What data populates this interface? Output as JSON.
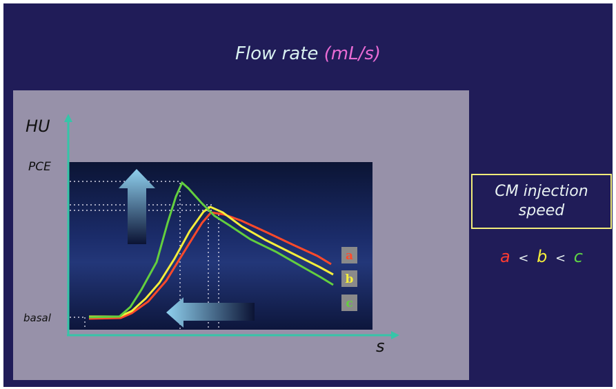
{
  "title": {
    "text": "Flow rate",
    "units": "(mL/s)"
  },
  "axes": {
    "y_label": "HU",
    "x_label": "s",
    "y_ticks": [
      "PCE",
      "basal"
    ]
  },
  "legend_tags": [
    "a",
    "b",
    "c"
  ],
  "speed_box": {
    "line1": "CM injection",
    "line2": "speed"
  },
  "order": {
    "a": "a",
    "lt1": "<",
    "b": "b",
    "lt2": "<",
    "c": "c"
  },
  "colors": {
    "background": "#201c58",
    "panel": "#9791a9",
    "curve_a": "#ff4a2a",
    "curve_b": "#f5ee3b",
    "curve_c": "#63cf3e",
    "axis": "#36c5a8",
    "box_border": "#f1ec7a"
  },
  "icons": [
    "arrow-up-icon",
    "arrow-left-icon"
  ]
}
